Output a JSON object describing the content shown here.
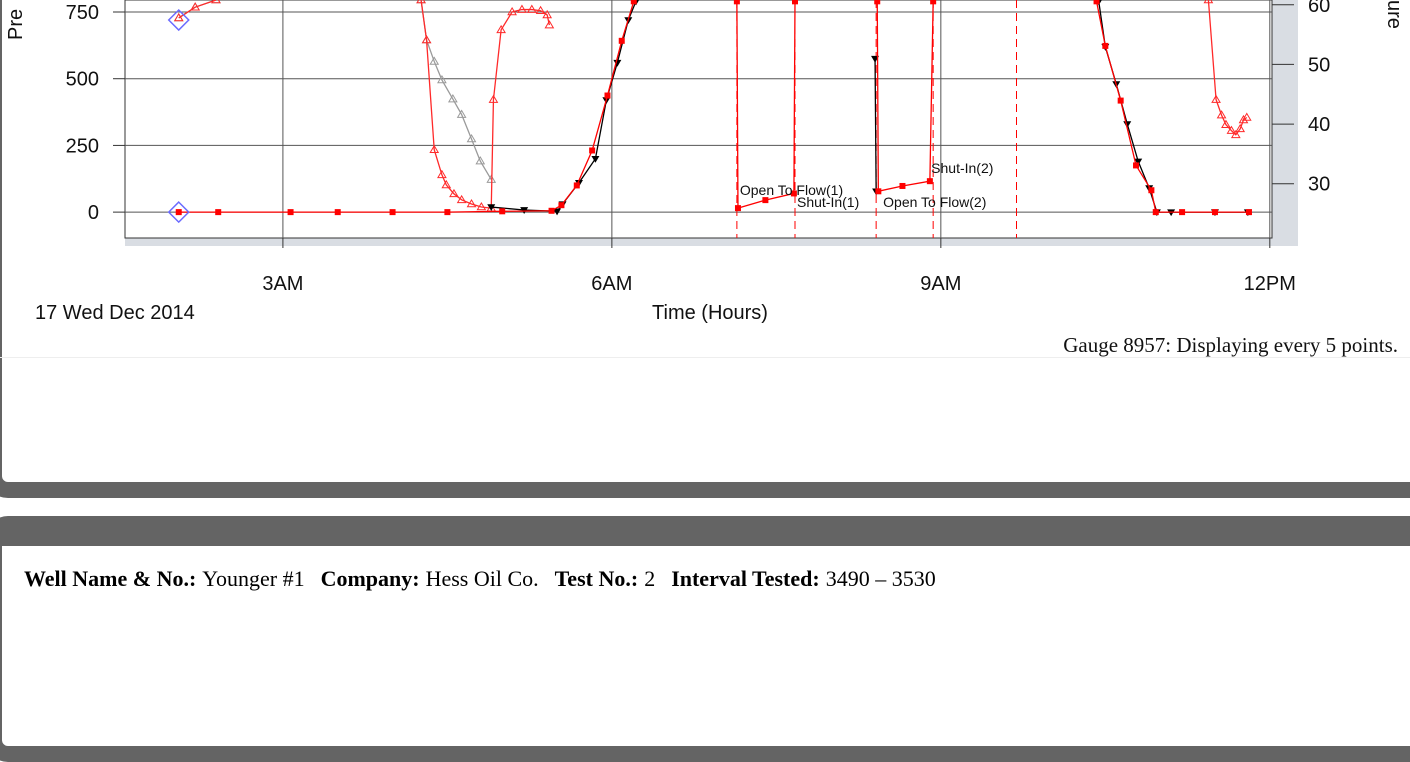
{
  "chart_data": {
    "type": "line",
    "y_label": "Pre",
    "y2_label": "ure",
    "x_label": "Time (Hours)",
    "date_label": "17 Wed Dec 2014",
    "note": "Gauge 8957: Displaying every 5 points.",
    "xlim": [
      1.56,
      12.02
    ],
    "xticks": [
      {
        "value": 3,
        "label": "3AM"
      },
      {
        "value": 6,
        "label": "6AM"
      },
      {
        "value": 9,
        "label": "9AM"
      },
      {
        "value": 12,
        "label": "12PM"
      }
    ],
    "ylim": [
      -97,
      795
    ],
    "yticks": [
      0,
      250,
      500,
      750
    ],
    "y2lim": [
      20.9,
      60.8
    ],
    "y2ticks": [
      30,
      40,
      50,
      60
    ],
    "grid": true,
    "series": [
      {
        "color": "#9a9a9a",
        "axis": "y2",
        "marker": "open-triangle",
        "x": [
          2.05,
          2.2,
          2.39,
          null,
          4.26,
          4.31,
          4.38,
          4.45,
          4.55,
          4.63,
          4.72,
          4.8,
          4.9
        ],
        "values": [
          57.8,
          59.6,
          60.8,
          null,
          60.8,
          54.1,
          50.5,
          47.4,
          44.2,
          41.6,
          37.5,
          33.8,
          30.7
        ]
      },
      {
        "color": "#ff2a2a",
        "axis": "y2",
        "marker": "open-triangle",
        "x": [
          2.05,
          2.2,
          2.39,
          null,
          4.26,
          4.31,
          4.38,
          4.45,
          4.49,
          4.56,
          4.63,
          4.72,
          4.81,
          4.9,
          4.92,
          4.99,
          5.09,
          5.18,
          5.27,
          5.35,
          5.41,
          5.43,
          null,
          11.44,
          11.51,
          11.56,
          11.6,
          11.65,
          11.69,
          11.73,
          11.76,
          11.79
        ],
        "values": [
          57.8,
          59.6,
          60.8,
          null,
          60.8,
          54.1,
          35.7,
          31.5,
          29.8,
          28.3,
          27.3,
          26.6,
          26.1,
          25.9,
          44.1,
          55.8,
          58.8,
          59.2,
          59.2,
          59.0,
          58.3,
          56.6,
          null,
          60.8,
          44.1,
          41.5,
          39.9,
          38.9,
          38.2,
          39.2,
          40.7,
          41.1
        ]
      },
      {
        "color": "#000000",
        "axis": "y",
        "marker": "down-triangle",
        "x": [
          4.9,
          5.2,
          5.5,
          5.55,
          5.7,
          5.85,
          5.95,
          6.05,
          6.15,
          6.22,
          null,
          8.4,
          8.41,
          null,
          10.44,
          10.5,
          10.6,
          10.7,
          10.8,
          10.9,
          10.97,
          11.1,
          11.5,
          11.8
        ],
        "values": [
          19,
          8,
          3,
          30,
          110,
          200,
          420,
          560,
          720,
          790,
          null,
          575,
          78,
          null,
          790,
          620,
          480,
          330,
          190,
          90,
          0,
          0,
          0,
          0
        ]
      },
      {
        "color": "#ff0000",
        "axis": "y",
        "marker": "square",
        "x": [
          2.05,
          2.41,
          3.07,
          3.5,
          4.0,
          4.5,
          5.0,
          5.45,
          5.54,
          5.68,
          5.82,
          5.96,
          6.09,
          6.2,
          null,
          7.14,
          7.15,
          7.4,
          7.66,
          7.67,
          null,
          8.42,
          8.43,
          8.65,
          8.9,
          8.93,
          null,
          10.42,
          10.5,
          10.64,
          10.78,
          10.92,
          10.96,
          11.2,
          11.5,
          11.81
        ],
        "values": [
          0,
          0,
          0,
          0,
          0,
          0,
          3,
          5,
          26,
          100,
          231,
          437,
          642,
          790,
          null,
          790,
          15,
          45,
          70,
          790,
          null,
          790,
          78,
          98,
          116,
          790,
          null,
          790,
          623,
          418,
          175,
          82,
          0,
          0,
          0,
          0
        ]
      },
      {
        "color": "#6b6bff",
        "axis": "y",
        "marker": "diamond",
        "line": false,
        "x": [
          2.05,
          2.05
        ],
        "values": [
          720,
          0
        ]
      }
    ],
    "events": [
      {
        "x": 7.14,
        "label": "Open To Flow(1)"
      },
      {
        "x": 7.67,
        "label": "Shut-In(1)"
      },
      {
        "x": 8.41,
        "label": "Open To Flow(2)"
      },
      {
        "x": 8.93,
        "label": "Shut-In(2)"
      },
      {
        "x": 9.69
      }
    ],
    "event_color": "#ff0000"
  },
  "well_info": [
    {
      "label": "Well Name & No.:",
      "value": "Younger #1"
    },
    {
      "label": "Company:",
      "value": "Hess Oil Co."
    },
    {
      "label": "Test No.:",
      "value": "2"
    },
    {
      "label": "Interval Tested:",
      "value": "3490 – 3530"
    }
  ]
}
